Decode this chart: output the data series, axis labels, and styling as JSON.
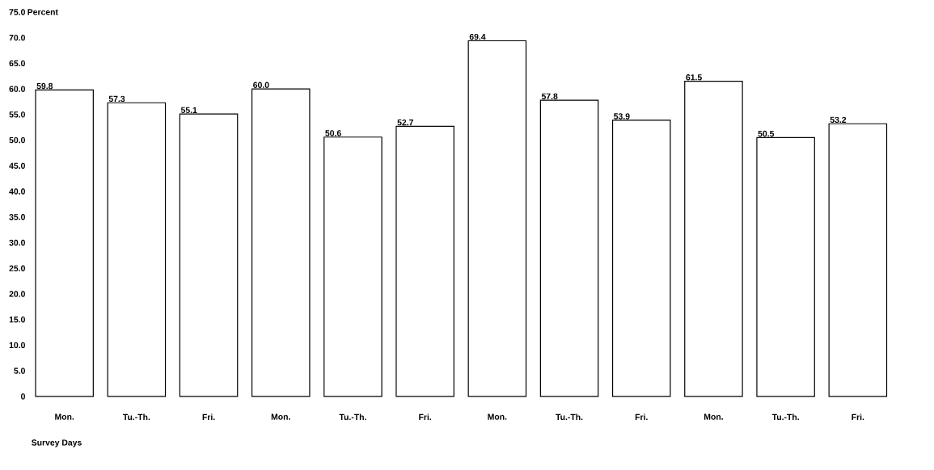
{
  "chart_data": {
    "type": "bar",
    "ylabel": "Percent",
    "xlabel": "Survey Days",
    "categories": [
      "Mon.",
      "Tu.-Th.",
      "Fri.",
      "Mon.",
      "Tu.-Th.",
      "Fri.",
      "Mon.",
      "Tu.-Th.",
      "Fri.",
      "Mon.",
      "Tu.-Th.",
      "Fri."
    ],
    "values": [
      59.8,
      57.3,
      55.1,
      60.0,
      50.6,
      52.7,
      69.4,
      57.8,
      53.9,
      61.5,
      50.5,
      53.2
    ],
    "value_labels": [
      "59.8",
      "57.3",
      "55.1",
      "60.0",
      "50.6",
      "52.7",
      "69.4",
      "57.8",
      "53.9",
      "61.5",
      "50.5",
      "53.2"
    ],
    "color": "#ffffff",
    "ylim": [
      0,
      75
    ],
    "yticks": [
      {
        "value": 0,
        "label": "0"
      },
      {
        "value": 5,
        "label": "5.0"
      },
      {
        "value": 10,
        "label": "10.0"
      },
      {
        "value": 15,
        "label": "15.0"
      },
      {
        "value": 20,
        "label": "20.0"
      },
      {
        "value": 25,
        "label": "25.0"
      },
      {
        "value": 30,
        "label": "30.0"
      },
      {
        "value": 35,
        "label": "35.0"
      },
      {
        "value": 40,
        "label": "40.0"
      },
      {
        "value": 45,
        "label": "45.0"
      },
      {
        "value": 50,
        "label": "50.0"
      },
      {
        "value": 55,
        "label": "55.0"
      },
      {
        "value": 60,
        "label": "60.0"
      },
      {
        "value": 65,
        "label": "65.0"
      },
      {
        "value": 70,
        "label": "70.0"
      },
      {
        "value": 75,
        "label": "75.0"
      }
    ]
  }
}
